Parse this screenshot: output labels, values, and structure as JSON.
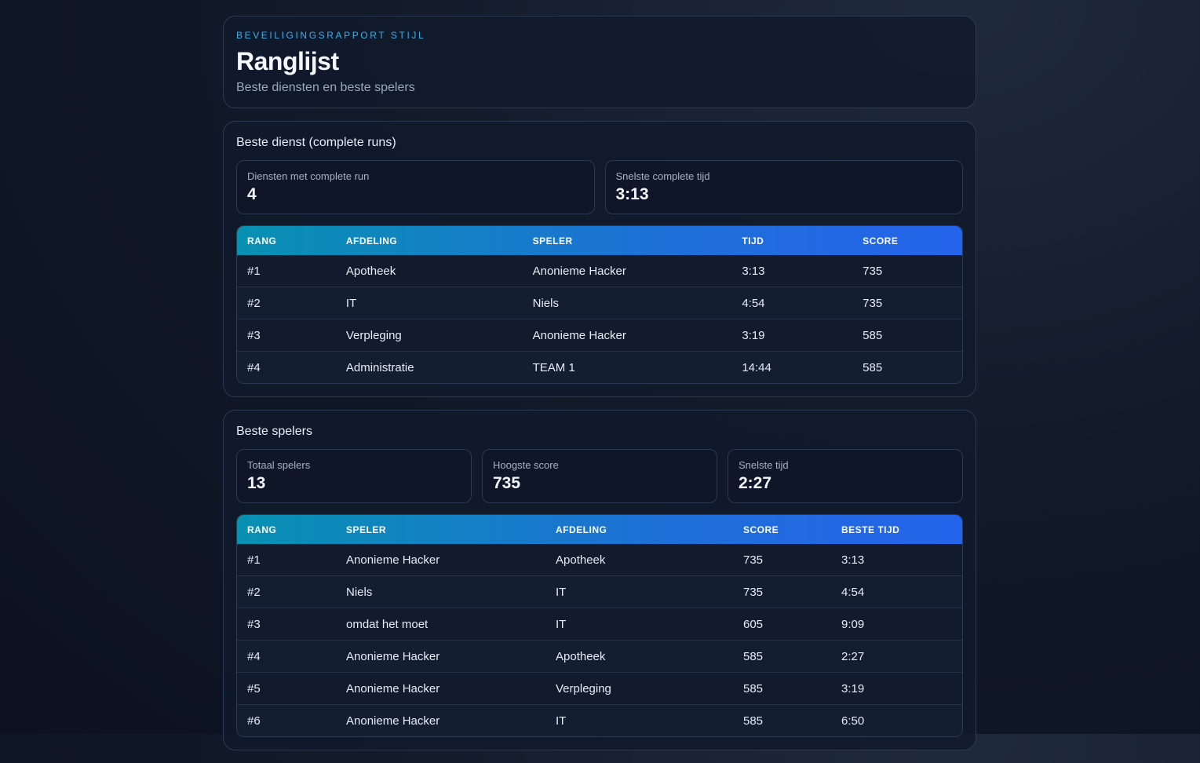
{
  "header": {
    "kicker": "BEVEILIGINGSRAPPORT STIJL",
    "title": "Ranglijst",
    "subtitle": "Beste diensten en beste spelers"
  },
  "services": {
    "title": "Beste dienst (complete runs)",
    "stats": [
      {
        "label": "Diensten met complete run",
        "value": "4"
      },
      {
        "label": "Snelste complete tijd",
        "value": "3:13"
      }
    ],
    "columns": [
      "RANG",
      "AFDELING",
      "SPELER",
      "TIJD",
      "SCORE"
    ],
    "rows": [
      [
        "#1",
        "Apotheek",
        "Anonieme Hacker",
        "3:13",
        "735"
      ],
      [
        "#2",
        "IT",
        "Niels",
        "4:54",
        "735"
      ],
      [
        "#3",
        "Verpleging",
        "Anonieme Hacker",
        "3:19",
        "585"
      ],
      [
        "#4",
        "Administratie",
        "TEAM 1",
        "14:44",
        "585"
      ]
    ]
  },
  "players": {
    "title": "Beste spelers",
    "stats": [
      {
        "label": "Totaal spelers",
        "value": "13"
      },
      {
        "label": "Hoogste score",
        "value": "735"
      },
      {
        "label": "Snelste tijd",
        "value": "2:27"
      }
    ],
    "columns": [
      "RANG",
      "SPELER",
      "AFDELING",
      "SCORE",
      "BESTE TIJD"
    ],
    "rows": [
      [
        "#1",
        "Anonieme Hacker",
        "Apotheek",
        "735",
        "3:13"
      ],
      [
        "#2",
        "Niels",
        "IT",
        "735",
        "4:54"
      ],
      [
        "#3",
        "omdat het moet",
        "IT",
        "605",
        "9:09"
      ],
      [
        "#4",
        "Anonieme Hacker",
        "Apotheek",
        "585",
        "2:27"
      ],
      [
        "#5",
        "Anonieme Hacker",
        "Verpleging",
        "585",
        "3:19"
      ],
      [
        "#6",
        "Anonieme Hacker",
        "IT",
        "585",
        "6:50"
      ]
    ]
  }
}
